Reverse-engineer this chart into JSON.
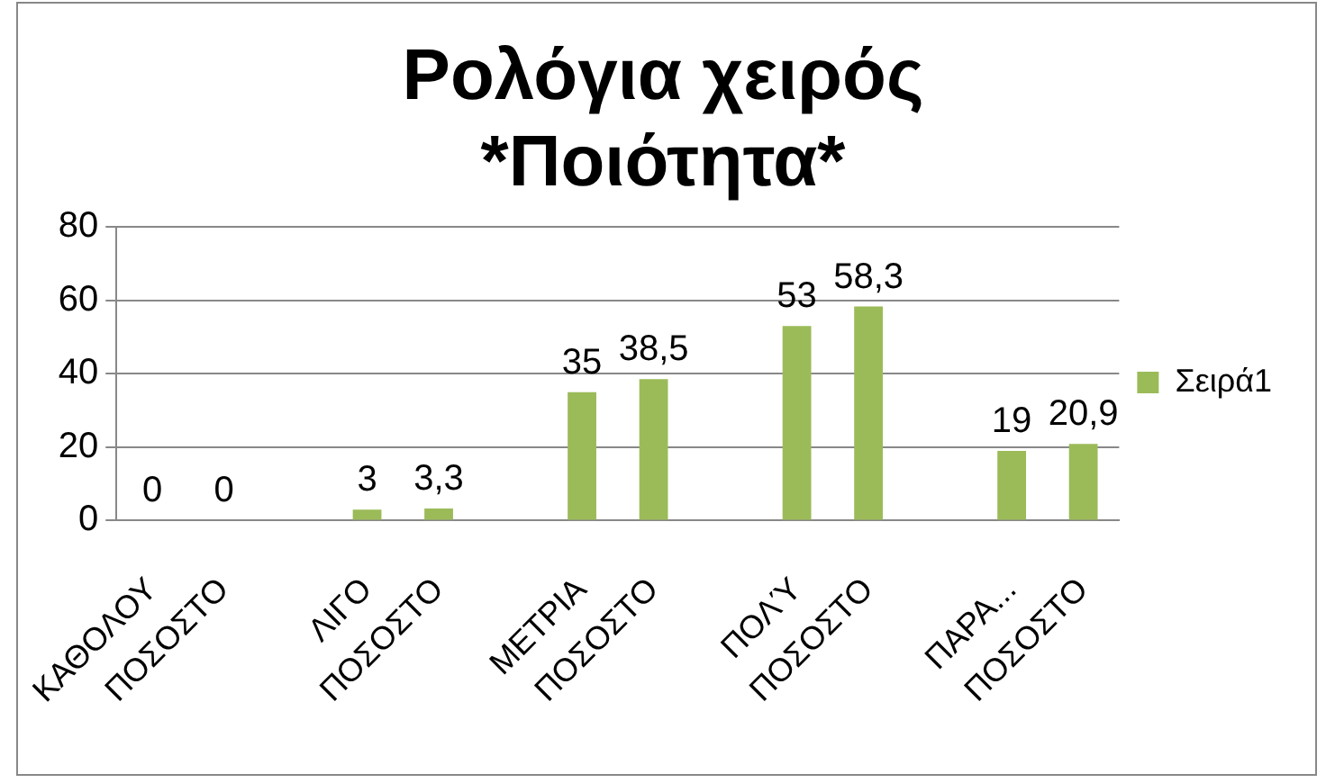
{
  "chart_data": {
    "type": "bar",
    "title": "Ρολόγια χειρός\n*Ποιότητα*",
    "categories": [
      "ΚΑΘΟΛΟΥ",
      "ΠΟΣΟΣΤΟ",
      null,
      "ΛΙΓΟ",
      "ΠΟΣΟΣΤΟ",
      null,
      "ΜΕΤΡΙΑ",
      "ΠΟΣΟΣΤΟ",
      null,
      "ΠΟΛΎ",
      "ΠΟΣΟΣΤΟ",
      null,
      "ΠΑΡΑ...",
      "ΠΟΣΟΣΤΟ"
    ],
    "series": [
      {
        "name": "Σειρά1",
        "color": "#9bbb59",
        "values": [
          0,
          0,
          null,
          3,
          3.3,
          null,
          35,
          38.5,
          null,
          53,
          58.3,
          null,
          19,
          20.9
        ],
        "value_labels": [
          "0",
          "0",
          null,
          "3",
          "3,3",
          null,
          "35",
          "38,5",
          null,
          "53",
          "58,3",
          null,
          "19",
          "20,9"
        ]
      }
    ],
    "ylim": [
      0,
      80
    ],
    "yticks": [
      0,
      20,
      40,
      60,
      80
    ],
    "grid": "y",
    "legend": "right"
  }
}
